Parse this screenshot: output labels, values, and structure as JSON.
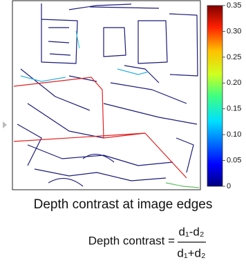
{
  "figure": {
    "colorbar": {
      "lim": [
        0,
        0.35
      ],
      "ticks": [
        0,
        0.05,
        {
          "value": 0.1,
          "label": "0.10"
        },
        0.15,
        {
          "value": 0.2,
          "label": "0.20"
        },
        0.25,
        {
          "value": 0.3,
          "label": "0.30"
        },
        0.35
      ]
    },
    "caption": "Depth contrast at image edges",
    "formula": {
      "lhs": "Depth contrast =",
      "numerator": "d₁-d₂",
      "denominator": "d₁+d₂"
    }
  }
}
